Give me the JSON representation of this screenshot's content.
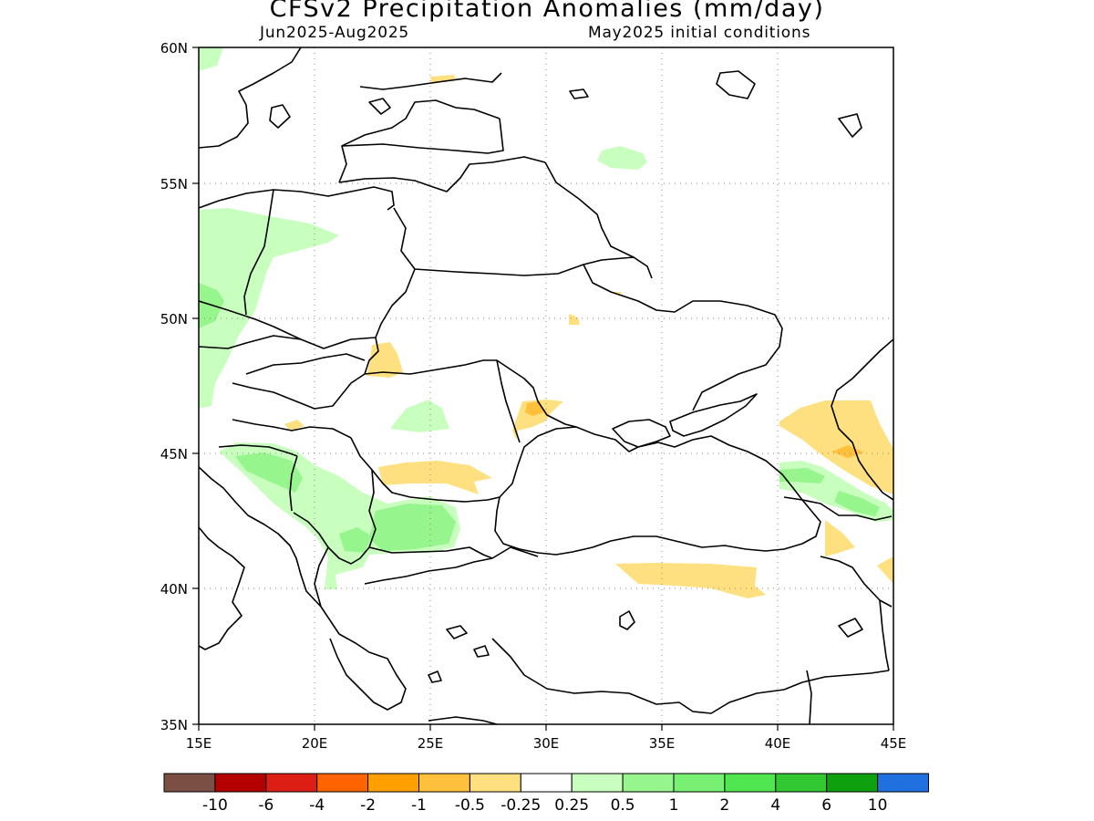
{
  "title": "CFSv2 Precipitation Anomalies (mm/day)",
  "period": "Jun2025-Aug2025",
  "init": "May2025 initial conditions",
  "map": {
    "lon_range": [
      15,
      45
    ],
    "lat_range": [
      35,
      60
    ],
    "grid": true,
    "lat_ticks": [
      "60N",
      "55N",
      "50N",
      "45N",
      "40N",
      "35N"
    ],
    "lon_ticks": [
      "15E",
      "20E",
      "25E",
      "30E",
      "35E",
      "40E",
      "45E"
    ]
  },
  "colorbar": {
    "colors": [
      "#7b4f44",
      "#b40000",
      "#dc1e14",
      "#ff6400",
      "#ffa000",
      "#ffc03c",
      "#ffe080",
      "#ffffff",
      "#c8ffbe",
      "#96f58c",
      "#78f073",
      "#50e650",
      "#32c832",
      "#0ea00e",
      "#2070e0"
    ],
    "labels": [
      "-10",
      "-6",
      "-4",
      "-2",
      "-1",
      "-0.5",
      "-0.25",
      "0.25",
      "0.5",
      "1",
      "2",
      "4",
      "6",
      "10"
    ]
  }
}
